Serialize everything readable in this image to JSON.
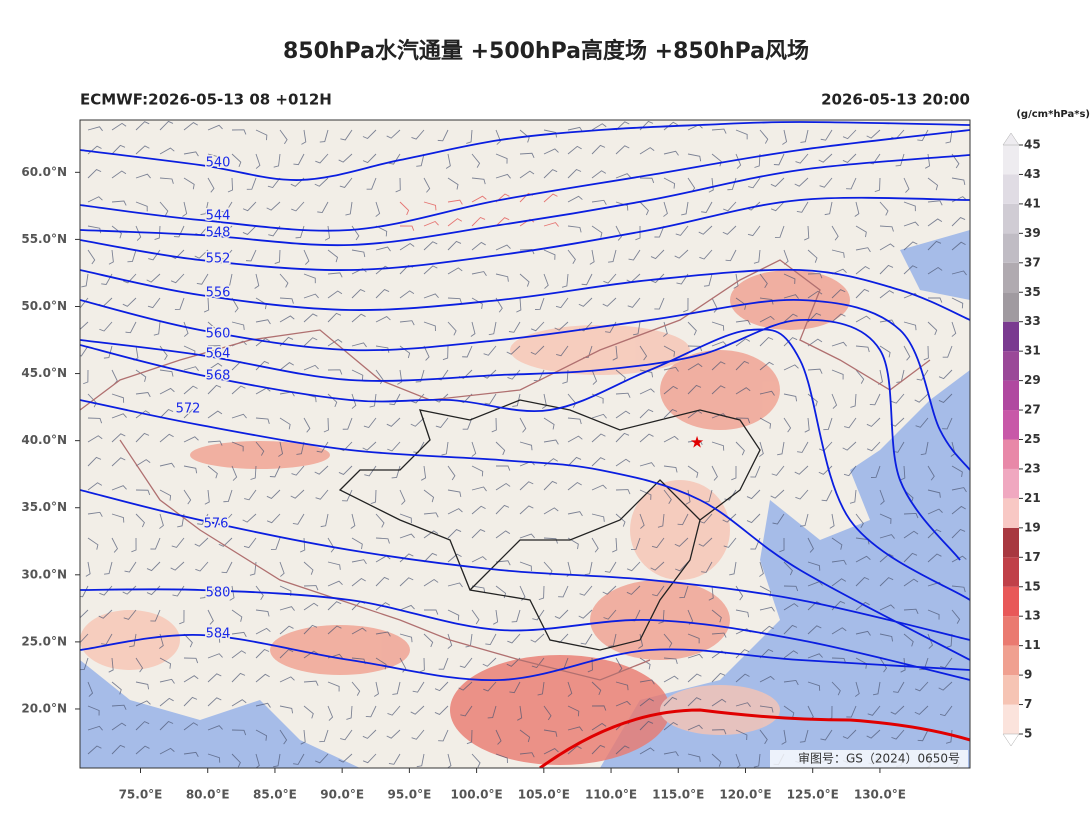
{
  "header": {
    "title": "850hPa水汽通量 +500hPa高度场 +850hPa风场",
    "model_run": "ECMWF:2026-05-13 08 +012H",
    "valid_time": "2026-05-13 20:00"
  },
  "map": {
    "xlim": [
      70.5,
      136.7
    ],
    "ylim": [
      15.6,
      63.9
    ],
    "xticks": [
      {
        "value": 75,
        "label": "75.0°E"
      },
      {
        "value": 80,
        "label": "80.0°E"
      },
      {
        "value": 85,
        "label": "85.0°E"
      },
      {
        "value": 90,
        "label": "90.0°E"
      },
      {
        "value": 95,
        "label": "95.0°E"
      },
      {
        "value": 100,
        "label": "100.0°E"
      },
      {
        "value": 105,
        "label": "105.0°E"
      },
      {
        "value": 110,
        "label": "110.0°E"
      },
      {
        "value": 115,
        "label": "115.0°E"
      },
      {
        "value": 120,
        "label": "120.0°E"
      },
      {
        "value": 125,
        "label": "125.0°E"
      },
      {
        "value": 130,
        "label": "130.0°E"
      }
    ],
    "yticks": [
      {
        "value": 20,
        "label": "20.0°N"
      },
      {
        "value": 25,
        "label": "25.0°N"
      },
      {
        "value": 30,
        "label": "30.0°N"
      },
      {
        "value": 35,
        "label": "35.0°N"
      },
      {
        "value": 40,
        "label": "40.0°N"
      },
      {
        "value": 45,
        "label": "45.0°N"
      },
      {
        "value": 50,
        "label": "50.0°N"
      },
      {
        "value": 55,
        "label": "55.0°N"
      },
      {
        "value": 60,
        "label": "60.0°N"
      }
    ],
    "contours": [
      540,
      544,
      548,
      552,
      556,
      560,
      564,
      568,
      572,
      576,
      580,
      584
    ],
    "approval": "审图号：GS（2024）0650号"
  },
  "colorbar": {
    "unit": "(g/cm*hPa*s)",
    "ticks": [
      5,
      7,
      9,
      11,
      13,
      15,
      17,
      19,
      21,
      23,
      25,
      27,
      29,
      31,
      33,
      35,
      37,
      39,
      41,
      43,
      45
    ],
    "colors": [
      "#fbe3dc",
      "#f6c4b4",
      "#f0a090",
      "#ea7a70",
      "#e85858",
      "#c04048",
      "#a83840",
      "#f8c8c4",
      "#f0a8c0",
      "#e888a8",
      "#c858a8",
      "#b048a0",
      "#9a4898",
      "#7a3a90",
      "#a09aa0",
      "#b0aab0",
      "#c0bcc4",
      "#d0ccd4",
      "#e0dce4",
      "#eeecf0"
    ]
  }
}
